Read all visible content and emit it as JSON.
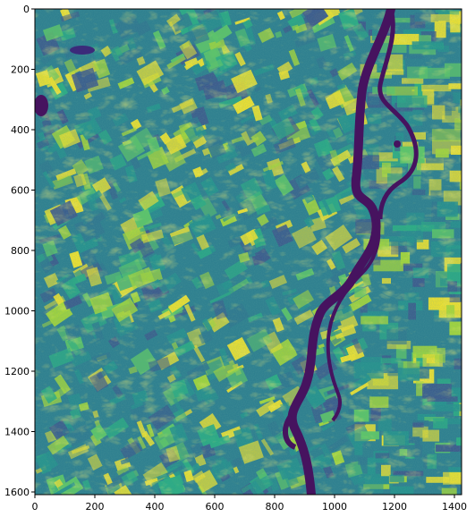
{
  "chart_data": {
    "type": "heatmap",
    "title": "",
    "xlabel": "",
    "ylabel": "",
    "colormap": "viridis",
    "xlim": [
      0,
      1420
    ],
    "ylim": [
      1610,
      0
    ],
    "x_ticks": [
      0,
      200,
      400,
      600,
      800,
      1000,
      1200,
      1400
    ],
    "y_ticks": [
      0,
      200,
      400,
      600,
      800,
      1000,
      1200,
      1400,
      1600
    ],
    "x_tick_labels": [
      "0",
      "200",
      "400",
      "600",
      "800",
      "1000",
      "1200",
      "1400"
    ],
    "y_tick_labels": [
      "0",
      "200",
      "400",
      "600",
      "800",
      "1000",
      "1200",
      "1400",
      "1600"
    ],
    "description_colors": {
      "water": "#440154",
      "low": "#3b528b",
      "mid": "#21918c",
      "high": "#5ec962",
      "peak": "#fde725"
    }
  }
}
